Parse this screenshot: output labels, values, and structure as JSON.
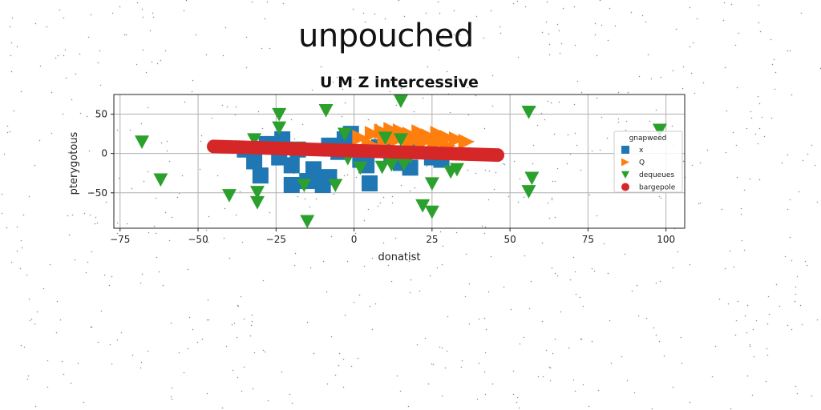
{
  "page": {
    "title": "unpouched"
  },
  "colors": {
    "x": "#1f77b4",
    "Q": "#ff7f0e",
    "dequeues": "#2ca02c",
    "bargepole": "#d62728",
    "grid": "#b0b0b0"
  },
  "chart_data": {
    "type": "scatter",
    "title": "U M Z intercessive",
    "xlabel": "donatist",
    "ylabel": "pterygotous",
    "xlim": [
      -77,
      106
    ],
    "ylim": [
      -95,
      75
    ],
    "xticks": [
      -75,
      -50,
      -25,
      0,
      25,
      50,
      75,
      100
    ],
    "xtick_labels": [
      "−75",
      "−50",
      "−25",
      "0",
      "25",
      "50",
      "75",
      "100"
    ],
    "yticks": [
      -50,
      0,
      50
    ],
    "ytick_labels": [
      "−50",
      "0",
      "50"
    ],
    "grid": true,
    "legend": {
      "title": "gnapweed",
      "position": "right"
    },
    "series": [
      {
        "name": "x",
        "marker": "square",
        "color": "#1f77b4",
        "points": [
          [
            -30,
            -28
          ],
          [
            -32,
            -10
          ],
          [
            -24,
            -5
          ],
          [
            -23,
            18
          ],
          [
            -28,
            12
          ],
          [
            -18,
            5
          ],
          [
            -20,
            -15
          ],
          [
            -13,
            -20
          ],
          [
            -15,
            -35
          ],
          [
            -8,
            -30
          ],
          [
            -10,
            -40
          ],
          [
            -5,
            2
          ],
          [
            -3,
            18
          ],
          [
            -8,
            10
          ],
          [
            -1,
            25
          ],
          [
            2,
            -8
          ],
          [
            4,
            -15
          ],
          [
            5,
            -38
          ],
          [
            8,
            8
          ],
          [
            10,
            5
          ],
          [
            12,
            -2
          ],
          [
            15,
            -12
          ],
          [
            18,
            -18
          ],
          [
            20,
            5
          ],
          [
            25,
            -5
          ],
          [
            28,
            -8
          ],
          [
            -20,
            -40
          ],
          [
            -35,
            5
          ]
        ]
      },
      {
        "name": "Q",
        "marker": "triangle-right",
        "color": "#ff7f0e",
        "points": [
          [
            2,
            20
          ],
          [
            6,
            25
          ],
          [
            9,
            28
          ],
          [
            12,
            22
          ],
          [
            15,
            28
          ],
          [
            18,
            24
          ],
          [
            21,
            27
          ],
          [
            24,
            22
          ],
          [
            27,
            25
          ],
          [
            30,
            20
          ],
          [
            33,
            18
          ],
          [
            36,
            15
          ],
          [
            5,
            12
          ],
          [
            10,
            15
          ],
          [
            14,
            18
          ],
          [
            18,
            14
          ],
          [
            22,
            16
          ],
          [
            26,
            12
          ],
          [
            30,
            10
          ],
          [
            12,
            30
          ],
          [
            16,
            22
          ],
          [
            20,
            20
          ],
          [
            24,
            18
          ],
          [
            28,
            16
          ]
        ]
      },
      {
        "name": "dequeues",
        "marker": "triangle-down",
        "color": "#2ca02c",
        "points": [
          [
            -68,
            15
          ],
          [
            -62,
            -33
          ],
          [
            -40,
            -53
          ],
          [
            -32,
            18
          ],
          [
            -31,
            -49
          ],
          [
            -31,
            -62
          ],
          [
            -24,
            50
          ],
          [
            -24,
            33
          ],
          [
            -18,
            7
          ],
          [
            -16,
            -40
          ],
          [
            -15,
            -86
          ],
          [
            -9,
            55
          ],
          [
            -6,
            -40
          ],
          [
            -3,
            25
          ],
          [
            -2,
            -6
          ],
          [
            2,
            -18
          ],
          [
            9,
            -17
          ],
          [
            10,
            20
          ],
          [
            12,
            -14
          ],
          [
            15,
            18
          ],
          [
            16,
            -13
          ],
          [
            18,
            -4
          ],
          [
            22,
            -66
          ],
          [
            25,
            -74
          ],
          [
            25,
            -38
          ],
          [
            31,
            -23
          ],
          [
            33,
            -20
          ],
          [
            56,
            -48
          ],
          [
            56,
            53
          ],
          [
            57,
            -31
          ],
          [
            98,
            30
          ],
          [
            15,
            67
          ]
        ]
      },
      {
        "name": "bargepole",
        "marker": "circle",
        "color": "#d62728",
        "x_range": [
          -45,
          46
        ],
        "y_range": [
          9,
          -2
        ],
        "count": 90
      }
    ]
  }
}
